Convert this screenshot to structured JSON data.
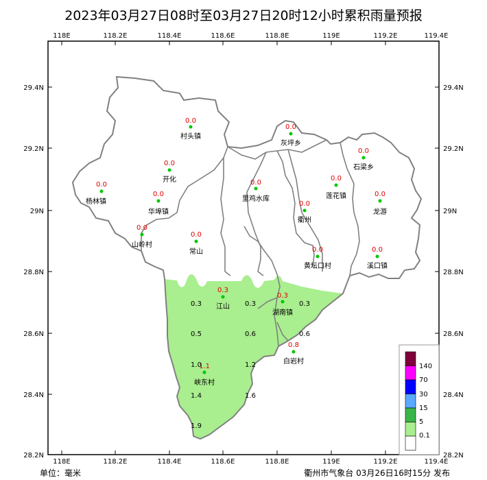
{
  "title": "2023年03月27日08时至03月27日20时12小时累积雨量预报",
  "axes": {
    "top_lon_labels": [
      "118E",
      "118.2E",
      "118.4E",
      "118.6E",
      "118.8E",
      "119E",
      "119.2E",
      "119.4E"
    ],
    "bottom_lon_labels": [
      "118E",
      "118.2E",
      "118.4E",
      "118.6E",
      "118.8E",
      "119E",
      "119.2E",
      "119.4E"
    ],
    "left_lat_labels": [
      "29.4N",
      "29.2N",
      "29N",
      "28.8N",
      "28.6N",
      "28.4N",
      "28.2N"
    ],
    "right_lat_labels": [
      "29.4N",
      "29.2N",
      "29N",
      "28.8N",
      "28.6N",
      "28.4N",
      "28.2N"
    ]
  },
  "stations": [
    {
      "name": "村头镇",
      "value": "0.0"
    },
    {
      "name": "灰坪乡",
      "value": "0.0"
    },
    {
      "name": "石梁乡",
      "value": "0.0"
    },
    {
      "name": "开化",
      "value": "0.0"
    },
    {
      "name": "杨林镇",
      "value": "0.0"
    },
    {
      "name": "华埠镇",
      "value": "0.0"
    },
    {
      "name": "里鸡水库",
      "value": "0.0"
    },
    {
      "name": "莲花镇",
      "value": "0.0"
    },
    {
      "name": "龙游",
      "value": "0.0"
    },
    {
      "name": "衢州",
      "value": "0.0"
    },
    {
      "name": "山岭村",
      "value": "0.0"
    },
    {
      "name": "常山",
      "value": "0.0"
    },
    {
      "name": "黄坛口村",
      "value": "0.0"
    },
    {
      "name": "溪口镇",
      "value": "0.0"
    },
    {
      "name": "江山",
      "value": "0.3"
    },
    {
      "name": "湖南镇",
      "value": "0.3"
    },
    {
      "name": "白岩村",
      "value": "0.8"
    },
    {
      "name": "峡东村",
      "value": "1.1"
    }
  ],
  "contour_labels": [
    "0.3",
    "0.3",
    "0.3",
    "0.5",
    "0.6",
    "0.6",
    "1.0",
    "1.2",
    "1.4",
    "1.6",
    "1.9"
  ],
  "legend": {
    "levels": [
      "140",
      "70",
      "30",
      "15",
      "5",
      "0.1"
    ],
    "colors": [
      "#80003c",
      "#ff00ff",
      "#0000ff",
      "#5aa9ff",
      "#3ab54a",
      "#a9ee8f",
      "#ffffff"
    ]
  },
  "colors": {
    "rain_area": "#a9ee8f",
    "station_dot": "#00c800",
    "value_text": "#e00000"
  },
  "footer": {
    "unit": "单位：毫米",
    "issuer": "衢州市气象台 03月26日16时15分 发布"
  }
}
